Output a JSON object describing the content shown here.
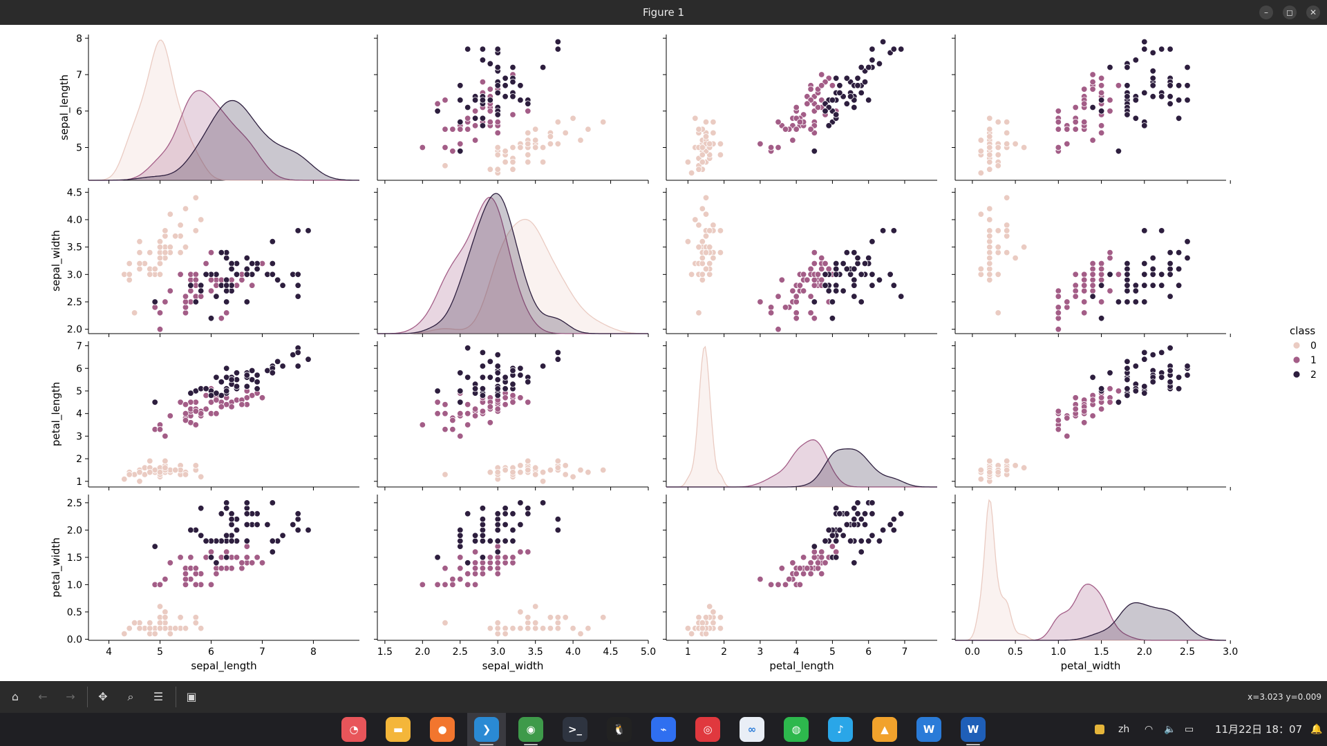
{
  "window": {
    "title": "Figure 1"
  },
  "window_controls": [
    {
      "name": "minimize",
      "glyph": "–"
    },
    {
      "name": "maximize",
      "glyph": "◻"
    },
    {
      "name": "close",
      "glyph": "✕"
    }
  ],
  "toolbar": {
    "buttons": [
      {
        "name": "home",
        "glyph": "⌂",
        "enabled": true
      },
      {
        "name": "back",
        "glyph": "←",
        "enabled": false
      },
      {
        "name": "forward",
        "glyph": "→",
        "enabled": false
      },
      {
        "name": "pan",
        "glyph": "✥",
        "enabled": true
      },
      {
        "name": "zoom",
        "glyph": "⌕",
        "enabled": true
      },
      {
        "name": "configure-subplots",
        "glyph": "☰",
        "enabled": true
      },
      {
        "name": "save",
        "glyph": "▣",
        "enabled": true
      }
    ],
    "coords": "x=3.023 y=0.009"
  },
  "taskbar": {
    "apps": [
      {
        "name": "screenshot-app",
        "color": "#e8555a",
        "glyph": "◔"
      },
      {
        "name": "files-app",
        "color": "#f4b63a",
        "glyph": "▬"
      },
      {
        "name": "firefox-app",
        "color": "#f2762e",
        "glyph": "●"
      },
      {
        "name": "vscode-app",
        "color": "#2a8ad4",
        "glyph": "❯"
      },
      {
        "name": "chrome-app",
        "color": "#3e9a4a",
        "glyph": "◉"
      },
      {
        "name": "terminal-app",
        "color": "#2e3440",
        "glyph": ">_"
      },
      {
        "name": "qq-app",
        "color": "#222222",
        "glyph": "🐧"
      },
      {
        "name": "feishu-app",
        "color": "#2f6ff0",
        "glyph": "⌁"
      },
      {
        "name": "netease-music-app",
        "color": "#e0383e",
        "glyph": "◎"
      },
      {
        "name": "baidu-netdisk-app",
        "color": "#e9eef6",
        "glyph": "∞"
      },
      {
        "name": "wechat-app",
        "color": "#2db84d",
        "glyph": "◍"
      },
      {
        "name": "music-app",
        "color": "#2aa6e8",
        "glyph": "♪"
      },
      {
        "name": "game-app",
        "color": "#f1a22c",
        "glyph": "▲"
      },
      {
        "name": "wps-app",
        "color": "#2a7bd8",
        "glyph": "W"
      },
      {
        "name": "word-app",
        "color": "#1f5fb8",
        "glyph": "W"
      }
    ],
    "active_index": 3,
    "tray": {
      "lang": "zh",
      "datetime": "11月22日 18：07"
    }
  },
  "colors": {
    "class0": "#eacbc2",
    "class1": "#a35d87",
    "class2": "#2d1e3e"
  },
  "chart_data": {
    "type": "scatter",
    "title": "",
    "variables": [
      "sepal_length",
      "sepal_width",
      "petal_length",
      "petal_width"
    ],
    "axis_ranges": {
      "sepal_length": [
        3.6,
        8.9
      ],
      "sepal_width": [
        1.4,
        5.0
      ],
      "petal_length": [
        0.4,
        7.9
      ],
      "petal_width": [
        -0.2,
        2.95
      ]
    },
    "y_ranges": {
      "sepal_length": [
        4.1,
        8.1
      ],
      "sepal_width": [
        1.92,
        4.58
      ],
      "petal_length": [
        0.75,
        7.2
      ],
      "petal_width": [
        -0.02,
        2.65
      ]
    },
    "x_ticks": {
      "sepal_length": [
        "4",
        "5",
        "6",
        "7",
        "8"
      ],
      "sepal_width": [
        "1.5",
        "2.0",
        "2.5",
        "3.0",
        "3.5",
        "4.0",
        "4.5",
        "5.0"
      ],
      "petal_length": [
        "1",
        "2",
        "3",
        "4",
        "5",
        "6",
        "7"
      ],
      "petal_width": [
        "0.0",
        "0.5",
        "1.0",
        "1.5",
        "2.0",
        "2.5",
        "3.0"
      ]
    },
    "y_ticks": {
      "sepal_length": [
        "5",
        "6",
        "7",
        "8"
      ],
      "sepal_width": [
        "2.0",
        "2.5",
        "3.0",
        "3.5",
        "4.0",
        "4.5"
      ],
      "petal_length": [
        "1",
        "2",
        "3",
        "4",
        "5",
        "6",
        "7"
      ],
      "petal_width": [
        "0.0",
        "0.5",
        "1.0",
        "1.5",
        "2.0",
        "2.5"
      ]
    },
    "hue": "class",
    "legend": {
      "title": "class",
      "placement": "right",
      "entries": [
        "0",
        "1",
        "2"
      ]
    },
    "grid": false,
    "diagonal": "kde",
    "classes": [
      {
        "name": "0",
        "sepal_length": [
          5.1,
          4.9,
          4.7,
          4.6,
          5.0,
          5.4,
          4.6,
          5.0,
          4.4,
          4.9,
          5.4,
          4.8,
          4.8,
          4.3,
          5.8,
          5.7,
          5.4,
          5.1,
          5.7,
          5.1,
          5.4,
          5.1,
          4.6,
          5.1,
          4.8,
          5.0,
          5.0,
          5.2,
          5.2,
          4.7,
          4.8,
          5.4,
          5.2,
          5.5,
          4.9,
          5.0,
          5.5,
          4.9,
          4.4,
          5.1,
          5.0,
          4.5,
          4.4,
          5.0,
          5.1,
          4.8,
          5.1,
          4.6,
          5.3,
          5.0
        ],
        "sepal_width": [
          3.5,
          3.0,
          3.2,
          3.1,
          3.6,
          3.9,
          3.4,
          3.4,
          2.9,
          3.1,
          3.7,
          3.4,
          3.0,
          3.0,
          4.0,
          4.4,
          3.9,
          3.5,
          3.8,
          3.8,
          3.4,
          3.7,
          3.6,
          3.3,
          3.4,
          3.0,
          3.4,
          3.5,
          3.4,
          3.2,
          3.1,
          3.4,
          4.1,
          4.2,
          3.1,
          3.2,
          3.5,
          3.1,
          3.0,
          3.4,
          3.5,
          2.3,
          3.2,
          3.5,
          3.8,
          3.0,
          3.8,
          3.2,
          3.7,
          3.3
        ],
        "petal_length": [
          1.4,
          1.4,
          1.3,
          1.5,
          1.4,
          1.7,
          1.4,
          1.5,
          1.4,
          1.5,
          1.5,
          1.6,
          1.4,
          1.1,
          1.2,
          1.5,
          1.3,
          1.4,
          1.7,
          1.5,
          1.7,
          1.5,
          1.0,
          1.7,
          1.9,
          1.6,
          1.6,
          1.5,
          1.4,
          1.6,
          1.6,
          1.5,
          1.5,
          1.4,
          1.5,
          1.2,
          1.3,
          1.5,
          1.3,
          1.5,
          1.3,
          1.3,
          1.3,
          1.6,
          1.9,
          1.4,
          1.6,
          1.4,
          1.5,
          1.4
        ],
        "petal_width": [
          0.2,
          0.2,
          0.2,
          0.2,
          0.2,
          0.4,
          0.3,
          0.2,
          0.2,
          0.1,
          0.2,
          0.2,
          0.1,
          0.1,
          0.2,
          0.4,
          0.4,
          0.3,
          0.3,
          0.3,
          0.2,
          0.4,
          0.2,
          0.5,
          0.2,
          0.2,
          0.4,
          0.2,
          0.2,
          0.2,
          0.2,
          0.4,
          0.1,
          0.2,
          0.1,
          0.2,
          0.2,
          0.1,
          0.2,
          0.2,
          0.3,
          0.3,
          0.2,
          0.6,
          0.4,
          0.3,
          0.2,
          0.2,
          0.2,
          0.2
        ]
      },
      {
        "name": "1",
        "sepal_length": [
          7.0,
          6.4,
          6.9,
          5.5,
          6.5,
          5.7,
          6.3,
          4.9,
          6.6,
          5.2,
          5.0,
          5.9,
          6.0,
          6.1,
          5.6,
          6.7,
          5.6,
          5.8,
          6.2,
          5.6,
          5.9,
          6.1,
          6.3,
          6.1,
          6.4,
          6.6,
          6.8,
          6.7,
          6.0,
          5.7,
          5.5,
          5.5,
          5.8,
          6.0,
          5.4,
          6.0,
          6.7,
          6.3,
          5.6,
          5.5,
          5.5,
          6.1,
          5.8,
          5.0,
          5.6,
          5.7,
          5.7,
          6.2,
          5.1,
          5.7
        ],
        "sepal_width": [
          3.2,
          3.2,
          3.1,
          2.3,
          2.8,
          2.8,
          3.3,
          2.4,
          2.9,
          2.7,
          2.0,
          3.0,
          2.2,
          2.9,
          2.9,
          3.1,
          3.0,
          2.7,
          2.2,
          2.5,
          3.2,
          2.8,
          2.5,
          2.8,
          2.9,
          3.0,
          2.8,
          3.0,
          2.9,
          2.6,
          2.4,
          2.4,
          2.7,
          2.7,
          3.0,
          3.4,
          3.1,
          2.3,
          3.0,
          2.5,
          2.6,
          3.0,
          2.6,
          2.3,
          2.7,
          3.0,
          2.9,
          2.9,
          2.5,
          2.8
        ],
        "petal_length": [
          4.7,
          4.5,
          4.9,
          4.0,
          4.6,
          4.5,
          4.7,
          3.3,
          4.6,
          3.9,
          3.5,
          4.2,
          4.0,
          4.7,
          3.6,
          4.4,
          4.5,
          4.1,
          4.5,
          3.9,
          4.8,
          4.0,
          4.9,
          4.7,
          4.3,
          4.4,
          4.8,
          5.0,
          4.5,
          3.5,
          3.8,
          3.7,
          3.9,
          5.1,
          4.5,
          4.5,
          4.7,
          4.4,
          4.1,
          4.0,
          4.4,
          4.6,
          4.0,
          3.3,
          4.2,
          4.2,
          4.2,
          4.3,
          3.0,
          4.1
        ],
        "petal_width": [
          1.4,
          1.5,
          1.5,
          1.3,
          1.5,
          1.3,
          1.6,
          1.0,
          1.3,
          1.4,
          1.0,
          1.5,
          1.0,
          1.4,
          1.3,
          1.4,
          1.5,
          1.0,
          1.5,
          1.1,
          1.8,
          1.3,
          1.5,
          1.2,
          1.3,
          1.4,
          1.4,
          1.7,
          1.5,
          1.0,
          1.1,
          1.0,
          1.2,
          1.6,
          1.5,
          1.6,
          1.5,
          1.3,
          1.3,
          1.3,
          1.2,
          1.4,
          1.2,
          1.0,
          1.3,
          1.2,
          1.3,
          1.3,
          1.1,
          1.3
        ]
      },
      {
        "name": "2",
        "sepal_length": [
          6.3,
          5.8,
          7.1,
          6.3,
          6.5,
          7.6,
          4.9,
          7.3,
          6.7,
          7.2,
          6.5,
          6.4,
          6.8,
          5.7,
          5.8,
          6.4,
          6.5,
          7.7,
          7.7,
          6.0,
          6.9,
          5.6,
          7.7,
          6.3,
          6.7,
          7.2,
          6.2,
          6.1,
          6.4,
          7.2,
          7.4,
          7.9,
          6.4,
          6.3,
          6.1,
          7.7,
          6.3,
          6.4,
          6.0,
          6.9,
          6.7,
          6.9,
          5.8,
          6.8,
          6.7,
          6.7,
          6.3,
          6.5,
          6.2,
          5.9
        ],
        "sepal_width": [
          3.3,
          2.7,
          3.0,
          2.9,
          3.0,
          3.0,
          2.5,
          2.9,
          2.5,
          3.6,
          3.2,
          2.7,
          3.0,
          2.5,
          2.8,
          3.2,
          3.0,
          3.8,
          2.6,
          2.2,
          3.2,
          2.8,
          2.8,
          2.7,
          3.3,
          3.2,
          2.8,
          3.0,
          2.8,
          3.0,
          2.8,
          3.8,
          2.8,
          2.8,
          2.6,
          3.0,
          3.4,
          3.1,
          3.0,
          3.1,
          3.1,
          3.1,
          2.7,
          3.2,
          3.3,
          3.0,
          2.5,
          3.0,
          3.4,
          3.0
        ],
        "petal_length": [
          6.0,
          5.1,
          5.9,
          5.6,
          5.8,
          6.6,
          4.5,
          6.3,
          5.8,
          6.1,
          5.1,
          5.3,
          5.5,
          5.0,
          5.1,
          5.3,
          5.5,
          6.7,
          6.9,
          5.0,
          5.7,
          4.9,
          6.7,
          4.9,
          5.7,
          6.0,
          4.8,
          4.9,
          5.6,
          5.8,
          6.1,
          6.4,
          5.6,
          5.1,
          5.6,
          6.1,
          5.6,
          5.5,
          4.8,
          5.4,
          5.6,
          5.1,
          5.1,
          5.9,
          5.7,
          5.2,
          5.0,
          5.2,
          5.4,
          5.1
        ],
        "petal_width": [
          2.5,
          1.9,
          2.1,
          1.8,
          2.2,
          2.1,
          1.7,
          1.8,
          1.8,
          2.5,
          2.0,
          1.9,
          2.1,
          2.0,
          2.4,
          2.3,
          1.8,
          2.2,
          2.3,
          1.5,
          2.3,
          2.0,
          2.0,
          1.8,
          2.1,
          1.8,
          1.8,
          1.8,
          2.1,
          1.6,
          1.9,
          2.0,
          2.2,
          1.5,
          1.4,
          2.3,
          2.4,
          1.8,
          1.8,
          2.1,
          2.4,
          2.3,
          1.9,
          2.3,
          2.5,
          2.3,
          1.9,
          2.0,
          2.3,
          1.8
        ]
      }
    ]
  }
}
